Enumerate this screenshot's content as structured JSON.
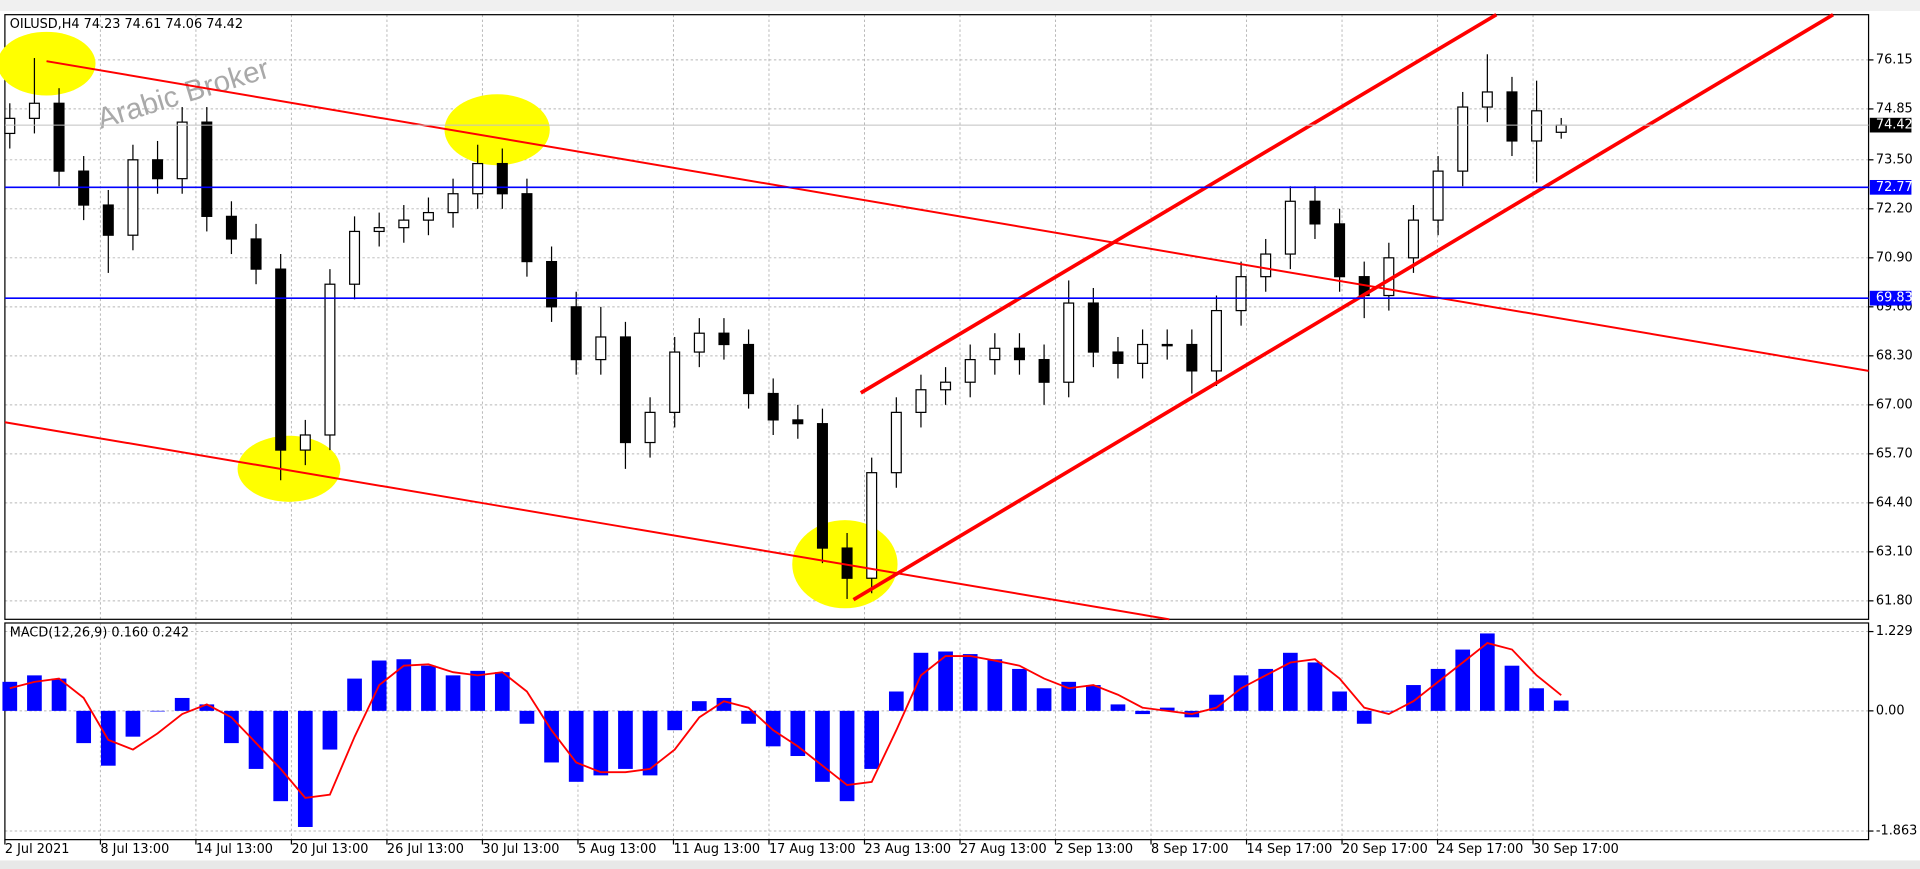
{
  "chart_data": {
    "type": "candlestick",
    "title": "OILUSD,H4  74.23 74.61 74.06 74.42",
    "watermark": "Arabic Broker",
    "open": [
      74.2,
      74.6,
      75.0,
      73.2,
      72.3,
      71.5,
      73.5,
      73.0,
      74.5,
      72.0,
      71.4,
      70.6,
      65.8,
      66.2,
      70.2,
      71.6,
      71.7,
      71.9,
      72.1,
      72.6,
      73.4,
      72.6,
      70.8,
      69.6,
      68.2,
      68.8,
      66.0,
      66.8,
      68.4,
      68.9,
      68.6,
      67.3,
      66.6,
      66.5,
      63.2,
      62.4,
      65.2,
      66.8,
      67.4,
      67.6,
      68.2,
      68.5,
      68.2,
      67.6,
      69.7,
      68.4,
      68.1,
      68.6,
      68.6,
      67.9,
      69.5,
      70.4,
      71.0,
      72.4,
      71.8,
      70.4,
      69.9,
      70.9,
      71.9,
      73.2,
      74.9,
      75.3,
      74.0,
      74.23
    ],
    "high": [
      75.0,
      76.2,
      75.4,
      73.6,
      72.7,
      73.9,
      74.0,
      74.9,
      74.9,
      72.4,
      71.8,
      71.0,
      66.6,
      70.6,
      72.0,
      72.1,
      72.3,
      72.5,
      73.0,
      73.9,
      73.8,
      73.0,
      71.2,
      70.0,
      69.6,
      69.2,
      67.2,
      68.8,
      69.3,
      69.3,
      69.0,
      67.7,
      67.0,
      66.9,
      63.6,
      65.6,
      67.2,
      67.8,
      68.0,
      68.6,
      68.9,
      68.9,
      68.6,
      70.3,
      70.1,
      68.8,
      69.0,
      69.0,
      69.0,
      69.9,
      70.8,
      71.4,
      72.8,
      72.8,
      72.2,
      70.8,
      71.3,
      72.3,
      73.6,
      75.3,
      76.3,
      75.7,
      75.6,
      74.61
    ],
    "low": [
      73.8,
      74.2,
      72.8,
      71.9,
      70.5,
      71.1,
      72.6,
      72.6,
      71.6,
      71.0,
      70.2,
      65.0,
      65.4,
      65.8,
      69.8,
      71.2,
      71.3,
      71.5,
      71.7,
      72.2,
      72.2,
      70.4,
      69.2,
      67.8,
      67.8,
      65.3,
      65.6,
      66.4,
      68.0,
      68.2,
      66.9,
      66.2,
      66.1,
      62.8,
      61.85,
      62.0,
      64.8,
      66.4,
      67.0,
      67.2,
      67.8,
      67.8,
      67.0,
      67.2,
      68.0,
      67.7,
      67.7,
      68.2,
      67.3,
      67.5,
      69.1,
      70.0,
      70.6,
      71.4,
      70.0,
      69.3,
      69.5,
      70.5,
      71.5,
      72.8,
      74.5,
      73.6,
      72.9,
      74.06
    ],
    "close": [
      74.6,
      75.0,
      73.2,
      72.3,
      71.5,
      73.5,
      73.0,
      74.5,
      72.0,
      71.4,
      70.6,
      65.8,
      66.2,
      70.2,
      71.6,
      71.7,
      71.9,
      72.1,
      72.6,
      73.4,
      72.6,
      70.8,
      69.6,
      68.2,
      68.8,
      66.0,
      66.8,
      68.4,
      68.9,
      68.6,
      67.3,
      66.6,
      66.5,
      63.2,
      62.4,
      65.2,
      66.8,
      67.4,
      67.6,
      68.2,
      68.5,
      68.2,
      67.6,
      69.7,
      68.4,
      68.1,
      68.6,
      68.6,
      67.9,
      69.5,
      70.4,
      71.0,
      72.4,
      71.8,
      70.4,
      69.9,
      70.9,
      71.9,
      73.2,
      74.9,
      75.3,
      74.0,
      74.8,
      74.42
    ],
    "ylim": [
      61.31,
      77.35
    ],
    "yticks": [
      76.15,
      74.85,
      {
        "value": 73.5,
        "label": "73.50"
      },
      {
        "value": 72.2,
        "label": "72.20"
      },
      {
        "value": 70.9,
        "label": "70.90"
      },
      {
        "value": 69.6,
        "label": "69.60"
      },
      {
        "value": 68.3,
        "label": "68.30"
      },
      {
        "value": 67.0,
        "label": "67.00"
      },
      {
        "value": 65.7,
        "label": "65.70"
      },
      {
        "value": 64.4,
        "label": "64.40"
      },
      {
        "value": 63.1,
        "label": "63.10"
      },
      {
        "value": 61.8,
        "label": "61.80"
      }
    ],
    "levels": [
      72.77,
      69.83
    ],
    "level_color": "#0000ff",
    "grid": true,
    "x_labels": [
      "2 Jul 2021",
      "8 Jul 13:00",
      "14 Jul 13:00",
      "20 Jul 13:00",
      "26 Jul 13:00",
      "30 Jul 13:00",
      "5 Aug 13:00",
      "11 Aug 13:00",
      "17 Aug 13:00",
      "23 Aug 13:00",
      "27 Aug 13:00",
      "2 Sep 13:00",
      "8 Sep 17:00",
      "14 Sep 17:00",
      "20 Sep 17:00",
      "24 Sep 17:00",
      "30 Sep 17:00"
    ],
    "macd": {
      "title": "MACD(12,26,9) 0.160 0.242",
      "histogram": [
        0.45,
        0.55,
        0.5,
        -0.5,
        -0.85,
        -0.4,
        0.0,
        0.2,
        0.1,
        -0.5,
        -0.9,
        -1.4,
        -1.8,
        -0.6,
        0.5,
        0.78,
        0.8,
        0.7,
        0.55,
        0.62,
        0.6,
        -0.2,
        -0.8,
        -1.1,
        -1.0,
        -0.9,
        -1.0,
        -0.3,
        0.15,
        0.2,
        -0.2,
        -0.55,
        -0.7,
        -1.1,
        -1.4,
        -0.9,
        0.3,
        0.9,
        0.92,
        0.88,
        0.8,
        0.65,
        0.35,
        0.45,
        0.4,
        0.1,
        -0.05,
        0.05,
        -0.1,
        0.25,
        0.55,
        0.65,
        0.9,
        0.75,
        0.3,
        -0.2,
        0.0,
        0.4,
        0.65,
        0.95,
        1.2,
        0.7,
        0.35,
        0.16
      ],
      "signal": [
        0.35,
        0.45,
        0.5,
        0.2,
        -0.45,
        -0.6,
        -0.35,
        -0.05,
        0.1,
        -0.1,
        -0.5,
        -0.9,
        -1.35,
        -1.3,
        -0.4,
        0.4,
        0.7,
        0.72,
        0.6,
        0.55,
        0.6,
        0.3,
        -0.3,
        -0.8,
        -0.95,
        -0.95,
        -0.9,
        -0.6,
        -0.1,
        0.15,
        0.05,
        -0.3,
        -0.55,
        -0.85,
        -1.15,
        -1.1,
        -0.3,
        0.55,
        0.85,
        0.85,
        0.78,
        0.7,
        0.5,
        0.35,
        0.4,
        0.25,
        0.05,
        0.0,
        -0.05,
        0.05,
        0.35,
        0.55,
        0.75,
        0.8,
        0.5,
        0.05,
        -0.05,
        0.15,
        0.45,
        0.75,
        1.05,
        0.95,
        0.55,
        0.242
      ],
      "histogram_color": "#0000ff",
      "signal_color": "#ff0000",
      "ylim": [
        -1.996,
        1.362
      ],
      "yticks": [
        1.229,
        {
          "value": 0,
          "label": "0.00"
        },
        -1.863
      ]
    }
  }
}
